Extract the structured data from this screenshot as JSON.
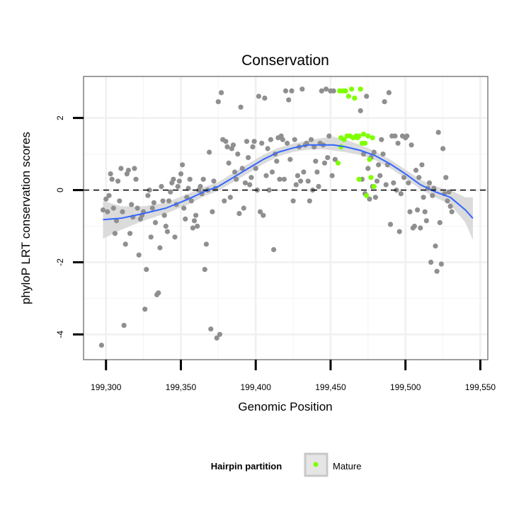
{
  "chart_data": {
    "type": "scatter",
    "title": "Conservation",
    "xlabel": "Genomic Position",
    "ylabel": "phyloP LRT conservation scores",
    "xlim": [
      199285,
      199555
    ],
    "ylim": [
      -4.7,
      3.15
    ],
    "x_ticks": [
      {
        "value": 199300,
        "label": "199,300"
      },
      {
        "value": 199350,
        "label": "199,350"
      },
      {
        "value": 199400,
        "label": "199,400"
      },
      {
        "value": 199450,
        "label": "199,450"
      },
      {
        "value": 199500,
        "label": "199,500"
      },
      {
        "value": 199550,
        "label": "199,550"
      }
    ],
    "y_ticks": [
      {
        "value": -4,
        "label": "-4"
      },
      {
        "value": -2,
        "label": "-2"
      },
      {
        "value": 0,
        "label": "0"
      },
      {
        "value": 2,
        "label": "2"
      }
    ],
    "reference_line": {
      "y": 0,
      "style": "dashed",
      "color": "#000000"
    },
    "grid": true,
    "legend": {
      "title": "Hairpin partition",
      "position": "bottom",
      "entries": [
        {
          "label": "Mature",
          "color": "#7fff00"
        }
      ]
    },
    "series": [
      {
        "name": "",
        "color": "#8f8f8f",
        "points": [
          [
            199297,
            -4.3
          ],
          [
            199298,
            -0.55
          ],
          [
            199300,
            -0.25
          ],
          [
            199301,
            -0.6
          ],
          [
            199302,
            -0.15
          ],
          [
            199303,
            0.45
          ],
          [
            199304,
            0.3
          ],
          [
            199305,
            -0.5
          ],
          [
            199306,
            -1.2
          ],
          [
            199307,
            -0.85
          ],
          [
            199308,
            0.25
          ],
          [
            199309,
            -0.3
          ],
          [
            199310,
            0.6
          ],
          [
            199311,
            -0.6
          ],
          [
            199312,
            -3.75
          ],
          [
            199313,
            -1.5
          ],
          [
            199314,
            0.45
          ],
          [
            199315,
            0.55
          ],
          [
            199316,
            -1.2
          ],
          [
            199317,
            -0.4
          ],
          [
            199318,
            -0.75
          ],
          [
            199319,
            0.6
          ],
          [
            199320,
            0.3
          ],
          [
            199321,
            -0.5
          ],
          [
            199322,
            -1.8
          ],
          [
            199323,
            -0.8
          ],
          [
            199324,
            -0.7
          ],
          [
            199325,
            -0.6
          ],
          [
            199326,
            -3.3
          ],
          [
            199327,
            -2.2
          ],
          [
            199328,
            -0.15
          ],
          [
            199329,
            0.0
          ],
          [
            199330,
            -1.3
          ],
          [
            199331,
            -0.5
          ],
          [
            199332,
            -0.35
          ],
          [
            199333,
            -0.9
          ],
          [
            199334,
            -2.9
          ],
          [
            199335,
            -2.85
          ],
          [
            199336,
            -1.6
          ],
          [
            199337,
            0.1
          ],
          [
            199338,
            -0.3
          ],
          [
            199339,
            -0.7
          ],
          [
            199340,
            -1.0
          ],
          [
            199341,
            -1.15
          ],
          [
            199342,
            -0.3
          ],
          [
            199343,
            -0.05
          ],
          [
            199344,
            0.2
          ],
          [
            199345,
            0.3
          ],
          [
            199346,
            -1.3
          ],
          [
            199347,
            -0.4
          ],
          [
            199348,
            0.1
          ],
          [
            199349,
            0.25
          ],
          [
            199350,
            0.45
          ],
          [
            199351,
            0.7
          ],
          [
            199352,
            -0.5
          ],
          [
            199353,
            -0.8
          ],
          [
            199354,
            -0.2
          ],
          [
            199355,
            0.05
          ],
          [
            199356,
            0.3
          ],
          [
            199357,
            -0.3
          ],
          [
            199358,
            -1.05
          ],
          [
            199359,
            -0.85
          ],
          [
            199360,
            -0.7
          ],
          [
            199361,
            -1.0
          ],
          [
            199362,
            0.0
          ],
          [
            199363,
            0.1
          ],
          [
            199364,
            -0.1
          ],
          [
            199365,
            0.3
          ],
          [
            199366,
            -2.2
          ],
          [
            199367,
            -1.5
          ],
          [
            199368,
            0.0
          ],
          [
            199369,
            1.05
          ],
          [
            199370,
            -3.85
          ],
          [
            199371,
            -0.6
          ],
          [
            199372,
            0.25
          ],
          [
            199373,
            0.05
          ],
          [
            199374,
            -4.1
          ],
          [
            199375,
            2.45
          ],
          [
            199376,
            -4.0
          ],
          [
            199377,
            2.7
          ],
          [
            199378,
            1.4
          ],
          [
            199379,
            -0.3
          ],
          [
            199380,
            1.35
          ],
          [
            199381,
            1.2
          ],
          [
            199382,
            0.75
          ],
          [
            199383,
            -0.2
          ],
          [
            199384,
            1.15
          ],
          [
            199385,
            1.25
          ],
          [
            199386,
            0.5
          ],
          [
            199387,
            0.3
          ],
          [
            199388,
            1.0
          ],
          [
            199389,
            -0.65
          ],
          [
            199390,
            2.3
          ],
          [
            199391,
            0.6
          ],
          [
            199392,
            -0.5
          ],
          [
            199393,
            0.2
          ],
          [
            199394,
            1.35
          ],
          [
            199395,
            0.9
          ],
          [
            199396,
            0.15
          ],
          [
            199397,
            0.35
          ],
          [
            199398,
            1.2
          ],
          [
            199399,
            1.35
          ],
          [
            199400,
            0.6
          ],
          [
            199401,
            0.0
          ],
          [
            199402,
            2.6
          ],
          [
            199403,
            -0.6
          ],
          [
            199404,
            1.3
          ],
          [
            199405,
            -0.7
          ],
          [
            199406,
            2.55
          ],
          [
            199407,
            0.4
          ],
          [
            199408,
            1.15
          ],
          [
            199409,
            0.0
          ],
          [
            199410,
            1.4
          ],
          [
            199411,
            0.5
          ],
          [
            199412,
            -1.65
          ],
          [
            199413,
            1.0
          ],
          [
            199414,
            0.8
          ],
          [
            199415,
            1.45
          ],
          [
            199416,
            0.3
          ],
          [
            199417,
            1.5
          ],
          [
            199418,
            1.4
          ],
          [
            199419,
            0.3
          ],
          [
            199420,
            2.75
          ],
          [
            199421,
            1.3
          ],
          [
            199422,
            2.5
          ],
          [
            199423,
            0.85
          ],
          [
            199424,
            2.75
          ],
          [
            199425,
            -0.3
          ],
          [
            199426,
            1.4
          ],
          [
            199427,
            0.15
          ],
          [
            199428,
            0.4
          ],
          [
            199429,
            1.2
          ],
          [
            199430,
            0.25
          ],
          [
            199431,
            2.8
          ],
          [
            199432,
            0.5
          ],
          [
            199433,
            1.25
          ],
          [
            199434,
            1.3
          ],
          [
            199435,
            0.25
          ],
          [
            199436,
            -0.3
          ],
          [
            199437,
            1.4
          ],
          [
            199438,
            0.0
          ],
          [
            199439,
            1.2
          ],
          [
            199440,
            0.8
          ],
          [
            199441,
            0.5
          ],
          [
            199442,
            0.1
          ],
          [
            199443,
            1.3
          ],
          [
            199444,
            2.75
          ],
          [
            199445,
            1.25
          ],
          [
            199446,
            0.75
          ],
          [
            199447,
            2.8
          ],
          [
            199448,
            0.9
          ],
          [
            199449,
            1.5
          ],
          [
            199450,
            2.75
          ],
          [
            199451,
            0.4
          ],
          [
            199452,
            2.75
          ],
          [
            199453,
            0.85
          ],
          [
            199470,
            2.2
          ],
          [
            199471,
            0.3
          ],
          [
            199472,
            1.0
          ],
          [
            199473,
            -0.1
          ],
          [
            199474,
            2.6
          ],
          [
            199475,
            0.6
          ],
          [
            199476,
            -0.25
          ],
          [
            199477,
            0.9
          ],
          [
            199478,
            0.1
          ],
          [
            199479,
            1.05
          ],
          [
            199480,
            -0.2
          ],
          [
            199481,
            0.25
          ],
          [
            199482,
            0.7
          ],
          [
            199483,
            0.4
          ],
          [
            199484,
            1.4
          ],
          [
            199485,
            1.0
          ],
          [
            199486,
            2.45
          ],
          [
            199487,
            0.15
          ],
          [
            199488,
            0.7
          ],
          [
            199489,
            2.7
          ],
          [
            199490,
            -0.95
          ],
          [
            199491,
            1.5
          ],
          [
            199492,
            0.2
          ],
          [
            199493,
            1.5
          ],
          [
            199494,
            0.0
          ],
          [
            199495,
            1.3
          ],
          [
            199496,
            -1.15
          ],
          [
            199497,
            -0.1
          ],
          [
            199498,
            1.5
          ],
          [
            199499,
            0.35
          ],
          [
            199500,
            1.45
          ],
          [
            199501,
            1.5
          ],
          [
            199502,
            0.2
          ],
          [
            199503,
            -0.6
          ],
          [
            199504,
            1.25
          ],
          [
            199505,
            -1.05
          ],
          [
            199506,
            -1.0
          ],
          [
            199507,
            0.55
          ],
          [
            199508,
            -0.55
          ],
          [
            199509,
            0.35
          ],
          [
            199510,
            -1.05
          ],
          [
            199511,
            0.7
          ],
          [
            199512,
            -0.2
          ],
          [
            199513,
            -0.6
          ],
          [
            199514,
            -0.85
          ],
          [
            199515,
            0.05
          ],
          [
            199516,
            0.2
          ],
          [
            199517,
            -2.0
          ],
          [
            199518,
            -0.15
          ],
          [
            199519,
            0.05
          ],
          [
            199520,
            -1.55
          ],
          [
            199521,
            -2.25
          ],
          [
            199522,
            1.6
          ],
          [
            199523,
            -0.9
          ],
          [
            199524,
            -2.05
          ],
          [
            199525,
            1.15
          ],
          [
            199526,
            -0.1
          ],
          [
            199527,
            0.35
          ],
          [
            199528,
            -0.3
          ],
          [
            199529,
            -0.05
          ],
          [
            199530,
            -0.45
          ],
          [
            199531,
            -0.6
          ]
        ]
      },
      {
        "name": "Mature",
        "color": "#7fff00",
        "points": [
          [
            199455,
            0.75
          ],
          [
            199456,
            2.75
          ],
          [
            199457,
            1.45
          ],
          [
            199458,
            2.75
          ],
          [
            199459,
            1.4
          ],
          [
            199460,
            2.75
          ],
          [
            199461,
            1.5
          ],
          [
            199462,
            2.6
          ],
          [
            199463,
            1.5
          ],
          [
            199464,
            2.8
          ],
          [
            199465,
            1.45
          ],
          [
            199466,
            2.55
          ],
          [
            199467,
            1.5
          ],
          [
            199468,
            1.45
          ],
          [
            199469,
            1.5
          ],
          [
            199470,
            2.8
          ],
          [
            199471,
            1.3
          ],
          [
            199472,
            1.55
          ],
          [
            199473,
            1.3
          ],
          [
            199474,
            -0.15
          ],
          [
            199475,
            1.5
          ],
          [
            199476,
            0.85
          ],
          [
            199477,
            0.35
          ],
          [
            199478,
            1.45
          ],
          [
            199479,
            0.1
          ],
          [
            199469,
            0.3
          ],
          [
            199457,
            1.2
          ]
        ]
      }
    ],
    "smooth": {
      "name": "",
      "color": "#3366ff",
      "band_color": "#d9d9d9",
      "x": [
        199298,
        199310,
        199325,
        199340,
        199355,
        199365,
        199375,
        199385,
        199395,
        199405,
        199415,
        199425,
        199435,
        199445,
        199452,
        199460,
        199470,
        199480,
        199490,
        199500,
        199510,
        199520,
        199530,
        199540,
        199545
      ],
      "y": [
        -0.82,
        -0.78,
        -0.65,
        -0.5,
        -0.25,
        -0.05,
        0.1,
        0.35,
        0.6,
        0.85,
        1.05,
        1.17,
        1.25,
        1.25,
        1.25,
        1.2,
        1.1,
        0.95,
        0.72,
        0.45,
        0.15,
        -0.05,
        -0.2,
        -0.55,
        -0.78
      ],
      "lower": [
        -1.35,
        -1.1,
        -0.85,
        -0.65,
        -0.4,
        -0.18,
        -0.02,
        0.22,
        0.47,
        0.72,
        0.93,
        1.06,
        1.12,
        1.13,
        1.1,
        1.05,
        0.97,
        0.83,
        0.6,
        0.33,
        0.02,
        -0.2,
        -0.4,
        -0.9,
        -1.38
      ],
      "upper": [
        -0.3,
        -0.45,
        -0.45,
        -0.35,
        -0.1,
        0.08,
        0.22,
        0.48,
        0.73,
        0.98,
        1.17,
        1.29,
        1.38,
        1.45,
        1.48,
        1.4,
        1.25,
        1.07,
        0.84,
        0.57,
        0.29,
        0.1,
        0.0,
        -0.2,
        -0.2
      ]
    }
  }
}
